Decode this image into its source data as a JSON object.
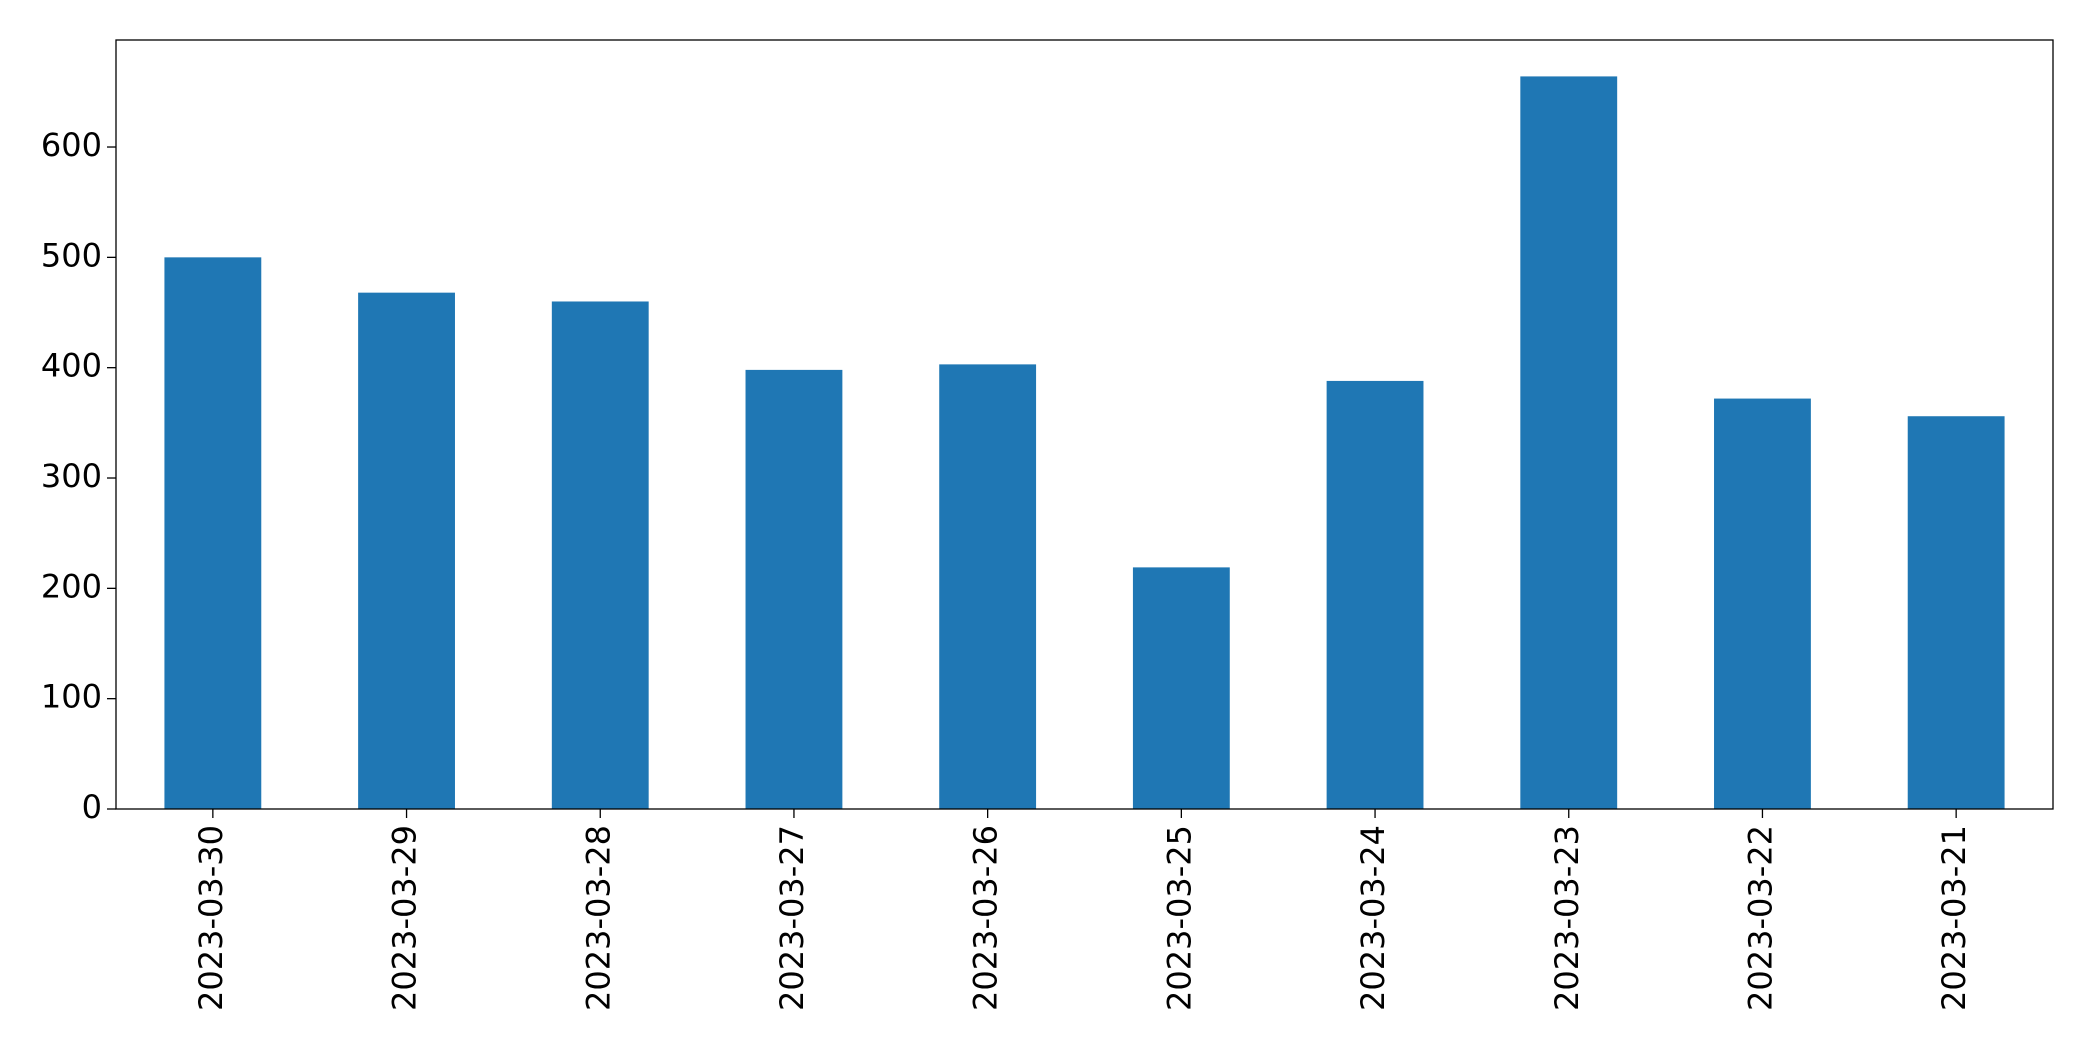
{
  "chart_data": {
    "type": "bar",
    "categories": [
      "2023-03-30",
      "2023-03-29",
      "2023-03-28",
      "2023-03-27",
      "2023-03-26",
      "2023-03-25",
      "2023-03-24",
      "2023-03-23",
      "2023-03-22",
      "2023-03-21"
    ],
    "values": [
      500,
      468,
      460,
      398,
      403,
      219,
      388,
      664,
      372,
      356
    ],
    "color": "#1f77b4",
    "ylim": [
      0,
      697
    ],
    "yticks": [
      0,
      100,
      200,
      300,
      400,
      500,
      600
    ],
    "grid": false
  }
}
